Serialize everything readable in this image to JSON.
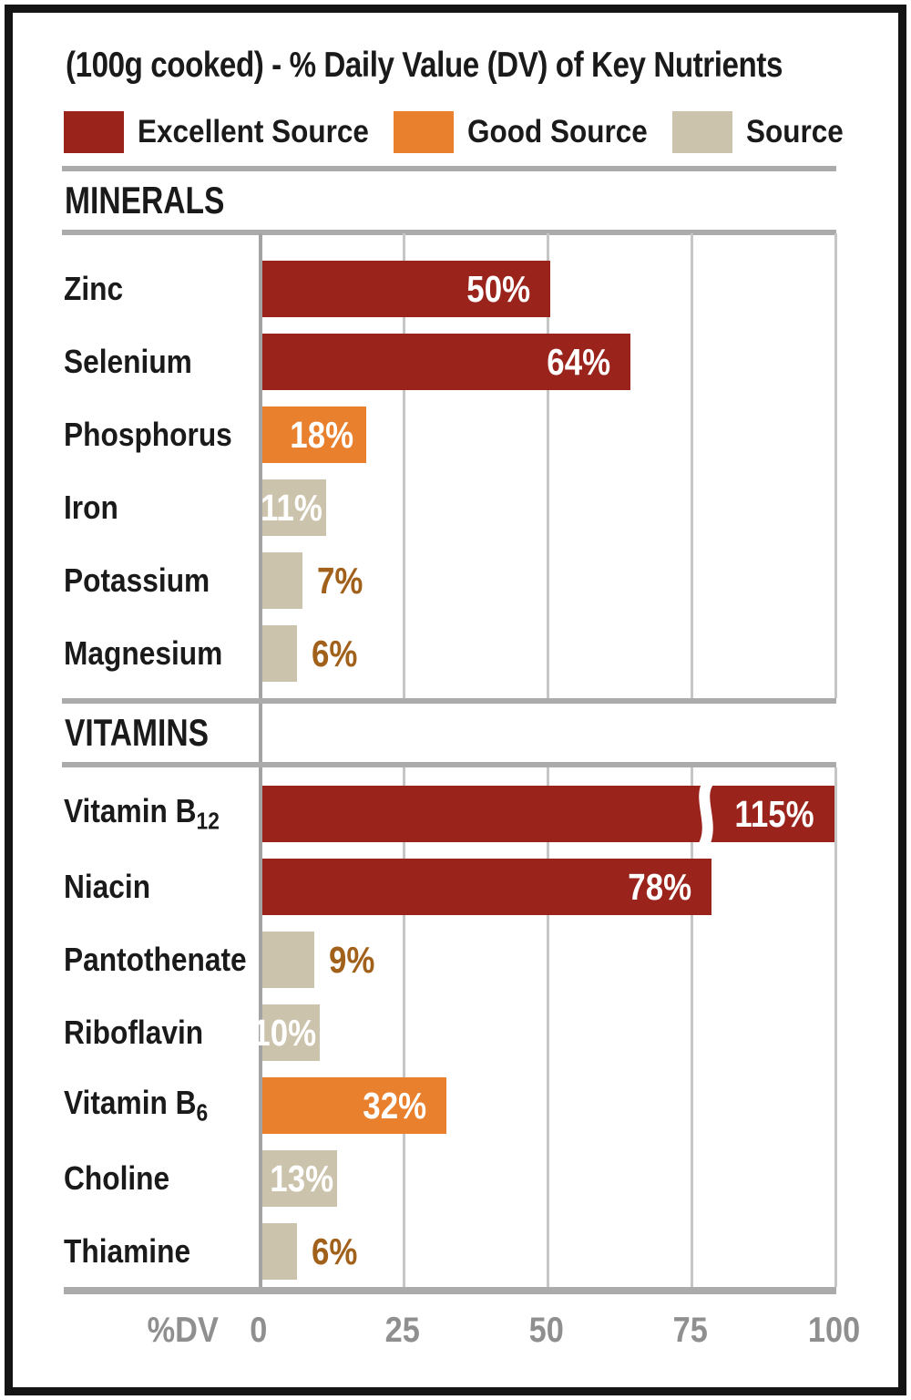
{
  "title": "(100g cooked) - % Daily Value (DV) of Key Nutrients",
  "legend": [
    {
      "key": "excellent",
      "label": "Excellent Source",
      "color": "#9a231c"
    },
    {
      "key": "good",
      "label": "Good Source",
      "color": "#e8802e"
    },
    {
      "key": "source",
      "label": "Source",
      "color": "#ccc3ac"
    }
  ],
  "axis": {
    "label": "%DV",
    "ticks": [
      "0",
      "25",
      "50",
      "75",
      "100"
    ]
  },
  "colors": {
    "excellent": "#9a231c",
    "good": "#e8802e",
    "source": "#ccc3ac",
    "outside_value_text": "#a2611b",
    "inside_value_text": "#ffffff",
    "grid": "#c6c6c4",
    "axis": "#ababab",
    "tick_text": "#8f8f8f",
    "text": "#1a1a1a"
  },
  "chart_data": {
    "type": "bar",
    "orientation": "horizontal",
    "title": "(100g cooked) - % Daily Value (DV) of Key Nutrients",
    "xlabel": "%DV",
    "xlim": [
      0,
      100
    ],
    "x_ticks": [
      0,
      25,
      50,
      75,
      100
    ],
    "grid": true,
    "legend_position": "top",
    "legend_entries": [
      "Excellent Source",
      "Good Source",
      "Source"
    ],
    "sections": [
      {
        "name": "MINERALS",
        "rows": [
          {
            "label": "Zinc",
            "sub": "",
            "value": 50,
            "display": "50%",
            "category": "excellent",
            "value_label_position": "inside",
            "axis_break": false
          },
          {
            "label": "Selenium",
            "sub": "",
            "value": 64,
            "display": "64%",
            "category": "excellent",
            "value_label_position": "inside",
            "axis_break": false
          },
          {
            "label": "Phosphorus",
            "sub": "",
            "value": 18,
            "display": "18%",
            "category": "good",
            "value_label_position": "inside",
            "axis_break": false
          },
          {
            "label": "Iron",
            "sub": "",
            "value": 11,
            "display": "11%",
            "category": "source",
            "value_label_position": "inside",
            "axis_break": false
          },
          {
            "label": "Potassium",
            "sub": "",
            "value": 7,
            "display": "7%",
            "category": "source",
            "value_label_position": "outside",
            "axis_break": false
          },
          {
            "label": "Magnesium",
            "sub": "",
            "value": 6,
            "display": "6%",
            "category": "source",
            "value_label_position": "outside",
            "axis_break": false
          }
        ]
      },
      {
        "name": "VITAMINS",
        "rows": [
          {
            "label": "Vitamin B",
            "sub": "12",
            "value": 115,
            "display": "115%",
            "category": "excellent",
            "value_label_position": "inside",
            "axis_break": true
          },
          {
            "label": "Niacin",
            "sub": "",
            "value": 78,
            "display": "78%",
            "category": "excellent",
            "value_label_position": "inside",
            "axis_break": false
          },
          {
            "label": "Pantothenate",
            "sub": "",
            "value": 9,
            "display": "9%",
            "category": "source",
            "value_label_position": "outside",
            "axis_break": false
          },
          {
            "label": "Riboflavin",
            "sub": "",
            "value": 10,
            "display": "10%",
            "category": "source",
            "value_label_position": "inside",
            "axis_break": false
          },
          {
            "label": "Vitamin B",
            "sub": "6",
            "value": 32,
            "display": "32%",
            "category": "good",
            "value_label_position": "inside",
            "axis_break": false
          },
          {
            "label": "Choline",
            "sub": "",
            "value": 13,
            "display": "13%",
            "category": "source",
            "value_label_position": "inside",
            "axis_break": false
          },
          {
            "label": "Thiamine",
            "sub": "",
            "value": 6,
            "display": "6%",
            "category": "source",
            "value_label_position": "outside",
            "axis_break": false
          }
        ]
      }
    ]
  }
}
